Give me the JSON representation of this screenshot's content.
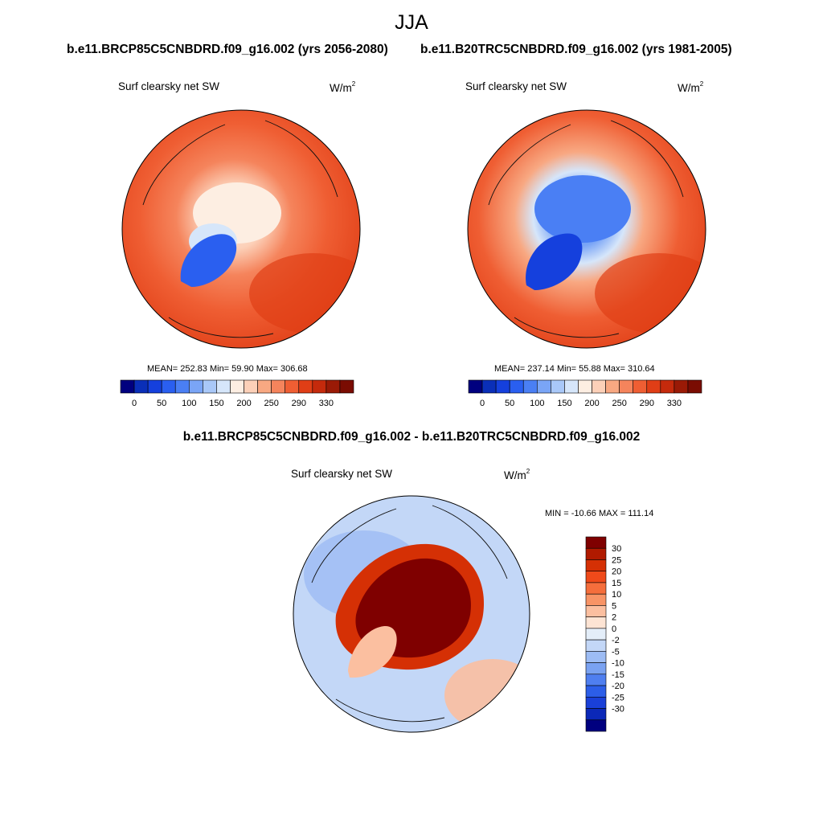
{
  "season": "JJA",
  "panels": {
    "left": {
      "case_title": "b.e11.BRCP85C5CNBDRD.f09_g16.002 (yrs 2056-2080)",
      "variable": "Surf clearsky net SW",
      "units_base": "W/m",
      "units_exp": "2",
      "stats": "MEAN= 252.83  Min=  59.90  Max= 306.68"
    },
    "right": {
      "case_title": "b.e11.B20TRC5CNBDRD.f09_g16.002 (yrs 1981-2005)",
      "variable": "Surf clearsky net SW",
      "units_base": "W/m",
      "units_exp": "2",
      "stats": "MEAN= 237.14  Min=  55.88  Max= 310.64"
    },
    "diff": {
      "title": "b.e11.BRCP85C5CNBDRD.f09_g16.002 - b.e11.B20TRC5CNBDRD.f09_g16.002",
      "variable": "Surf clearsky net SW",
      "units_base": "W/m",
      "units_exp": "2",
      "stats": "MIN = -10.66 MAX = 111.14"
    }
  },
  "chart_data": [
    {
      "type": "heatmap",
      "projection": "north-polar-stereographic",
      "title": "Surf clearsky net SW",
      "case": "b.e11.BRCP85C5CNBDRD.f09_g16.002 (yrs 2056-2080)",
      "units": "W/m2",
      "mean": 252.83,
      "min": 59.9,
      "max": 306.68,
      "colorbar": {
        "orientation": "horizontal",
        "tick_labels": [
          "0",
          "50",
          "100",
          "150",
          "200",
          "250",
          "290",
          "330"
        ],
        "colors": [
          "#00007f",
          "#0a2fb8",
          "#1540dd",
          "#2a5ff0",
          "#4a7ff4",
          "#7aa5f6",
          "#a9c8f8",
          "#d6e6fa",
          "#fdeee2",
          "#fcd0b8",
          "#f8a882",
          "#f5845c",
          "#ef5e33",
          "#e03e16",
          "#c52a0c",
          "#9a1a06",
          "#7a0c02"
        ]
      }
    },
    {
      "type": "heatmap",
      "projection": "north-polar-stereographic",
      "title": "Surf clearsky net SW",
      "case": "b.e11.B20TRC5CNBDRD.f09_g16.002 (yrs 1981-2005)",
      "units": "W/m2",
      "mean": 237.14,
      "min": 55.88,
      "max": 310.64,
      "colorbar": {
        "orientation": "horizontal",
        "tick_labels": [
          "0",
          "50",
          "100",
          "150",
          "200",
          "250",
          "290",
          "330"
        ],
        "colors": [
          "#00007f",
          "#0a2fb8",
          "#1540dd",
          "#2a5ff0",
          "#4a7ff4",
          "#7aa5f6",
          "#a9c8f8",
          "#d6e6fa",
          "#fdeee2",
          "#fcd0b8",
          "#f8a882",
          "#f5845c",
          "#ef5e33",
          "#e03e16",
          "#c52a0c",
          "#9a1a06",
          "#7a0c02"
        ]
      }
    },
    {
      "type": "heatmap",
      "projection": "north-polar-stereographic",
      "title": "Surf clearsky net SW",
      "case": "b.e11.BRCP85C5CNBDRD.f09_g16.002 - b.e11.B20TRC5CNBDRD.f09_g16.002",
      "units": "W/m2",
      "min": -10.66,
      "max": 111.14,
      "colorbar": {
        "orientation": "vertical",
        "tick_labels": [
          "30",
          "25",
          "20",
          "15",
          "10",
          "5",
          "2",
          "0",
          "-2",
          "-5",
          "-10",
          "-15",
          "-20",
          "-25",
          "-30"
        ],
        "colors": [
          "#7f0000",
          "#b01a00",
          "#d53005",
          "#ef4a1a",
          "#f56e3c",
          "#f89466",
          "#fbbfa0",
          "#fde4d4",
          "#e4eef9",
          "#c3d7f7",
          "#9dbcf4",
          "#7aa2f1",
          "#4f7ff0",
          "#2c5ee8",
          "#1a40d8",
          "#0b28b8",
          "#00007f"
        ]
      }
    }
  ]
}
